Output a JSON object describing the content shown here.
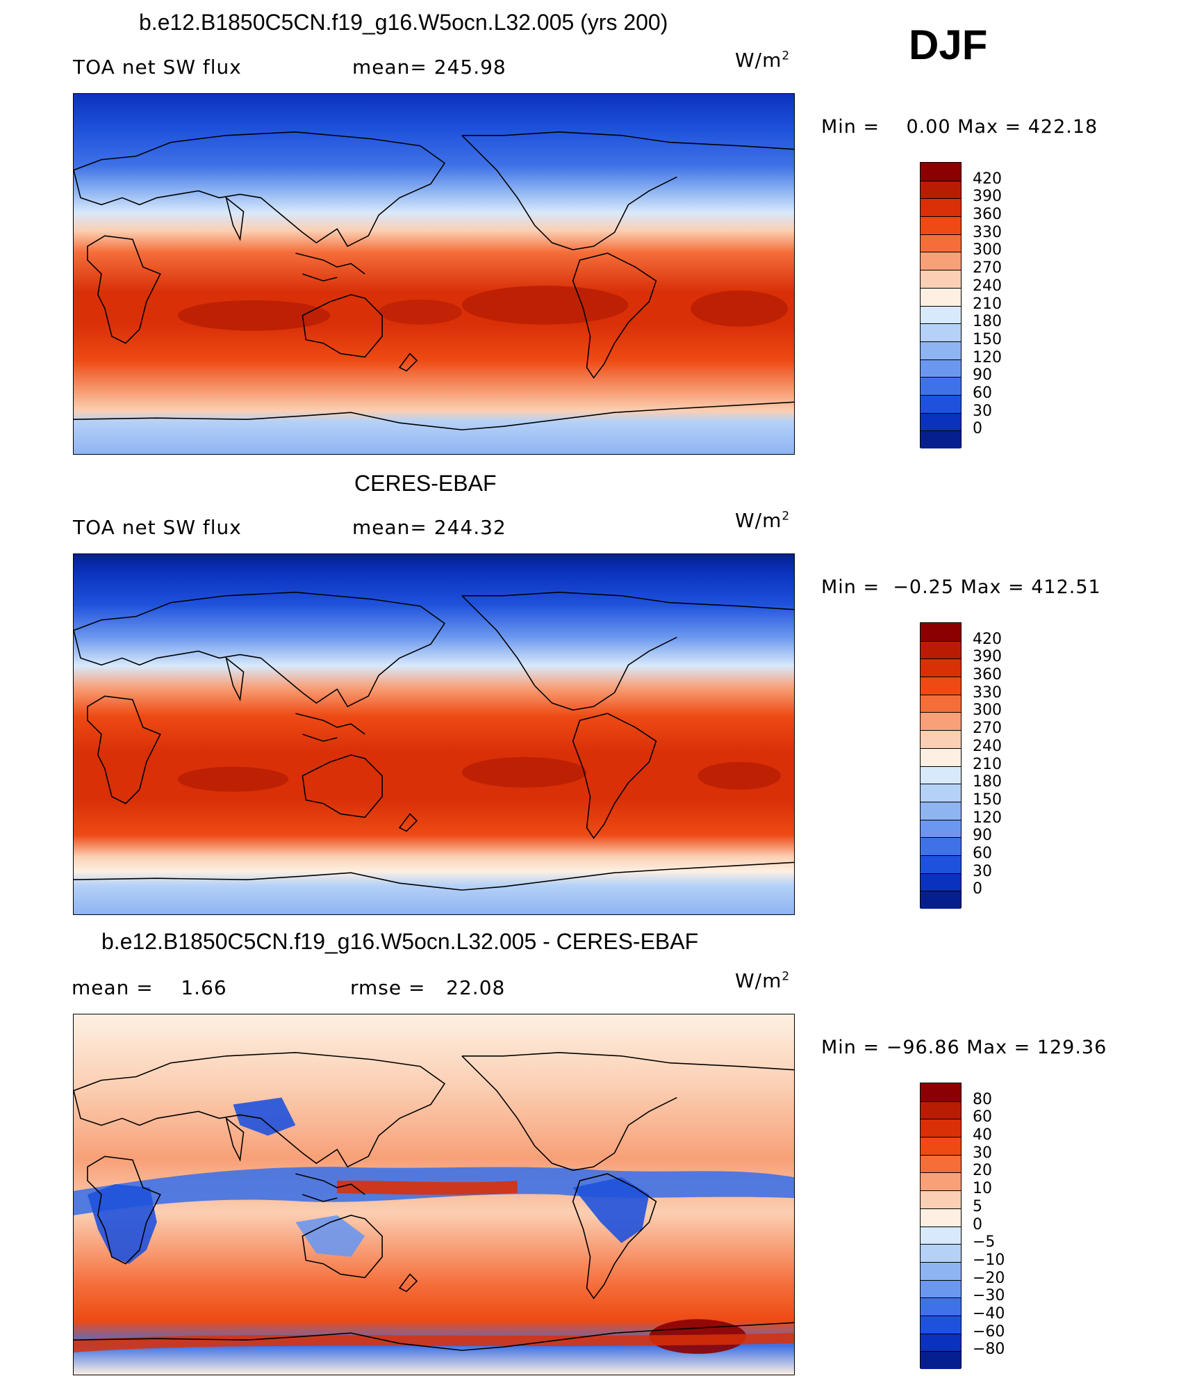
{
  "season": "DJF",
  "unit_base": "W/m",
  "unit_sup": "2",
  "panels": [
    {
      "title": "b.e12.B1850C5CN.f19_g16.W5ocn.L32.005 (yrs 200)",
      "left_label": "TOA net SW flux",
      "mid_label": "mean= 245.98",
      "minmax": "Min =    0.00 Max = 422.18"
    },
    {
      "title": "CERES-EBAF",
      "left_label": "TOA net SW flux",
      "mid_label": "mean= 244.32",
      "minmax": "Min =  −0.25 Max = 412.51"
    },
    {
      "title": "b.e12.B1850C5CN.f19_g16.W5ocn.L32.005 - CERES-EBAF",
      "left_label": "mean =    1.66",
      "mid_label": "rmse =   22.08",
      "minmax": "Min = −96.86 Max = 129.36"
    }
  ],
  "chart_data": [
    {
      "type": "heatmap",
      "title": "b.e12.B1850C5CN.f19_g16.W5ocn.L32.005 (yrs 200)",
      "variable": "TOA net SW flux",
      "units": "W/m2",
      "mean": 245.98,
      "min": 0.0,
      "max": 422.18,
      "colorbar_levels": [
        "420",
        "390",
        "360",
        "330",
        "300",
        "270",
        "240",
        "210",
        "180",
        "150",
        "120",
        "90",
        "60",
        "30",
        "0"
      ],
      "colorbar_colors": [
        "#8b0000",
        "#b81d04",
        "#d93008",
        "#ee4a14",
        "#f56e3a",
        "#f8a078",
        "#fbcfb3",
        "#fdf0e2",
        "#d8e9fb",
        "#b5d1f7",
        "#8eb4f2",
        "#6b97ee",
        "#3f72e6",
        "#1f52dc",
        "#0b32bd",
        "#061f8e"
      ]
    },
    {
      "type": "heatmap",
      "title": "CERES-EBAF",
      "variable": "TOA net SW flux",
      "units": "W/m2",
      "mean": 244.32,
      "min": -0.25,
      "max": 412.51,
      "colorbar_levels": [
        "420",
        "390",
        "360",
        "330",
        "300",
        "270",
        "240",
        "210",
        "180",
        "150",
        "120",
        "90",
        "60",
        "30",
        "0"
      ],
      "colorbar_colors": [
        "#8b0000",
        "#b81d04",
        "#d93008",
        "#ee4a14",
        "#f56e3a",
        "#f8a078",
        "#fbcfb3",
        "#fdf0e2",
        "#d8e9fb",
        "#b5d1f7",
        "#8eb4f2",
        "#6b97ee",
        "#3f72e6",
        "#1f52dc",
        "#0b32bd",
        "#061f8e"
      ]
    },
    {
      "type": "heatmap",
      "title": "b.e12.B1850C5CN.f19_g16.W5ocn.L32.005 - CERES-EBAF",
      "variable": "difference",
      "units": "W/m2",
      "mean": 1.66,
      "rmse": 22.08,
      "min": -96.86,
      "max": 129.36,
      "colorbar_levels": [
        "80",
        "60",
        "40",
        "30",
        "20",
        "10",
        "5",
        "0",
        "−5",
        "−10",
        "−20",
        "−30",
        "−40",
        "−60",
        "−80"
      ],
      "colorbar_colors": [
        "#8b0000",
        "#b81d04",
        "#d93008",
        "#ee4a14",
        "#f56e3a",
        "#f8a078",
        "#fbcfb3",
        "#fdf0e2",
        "#d8e9fb",
        "#b5d1f7",
        "#8eb4f2",
        "#6b97ee",
        "#3f72e6",
        "#1f52dc",
        "#0b32bd",
        "#061f8e"
      ]
    }
  ]
}
